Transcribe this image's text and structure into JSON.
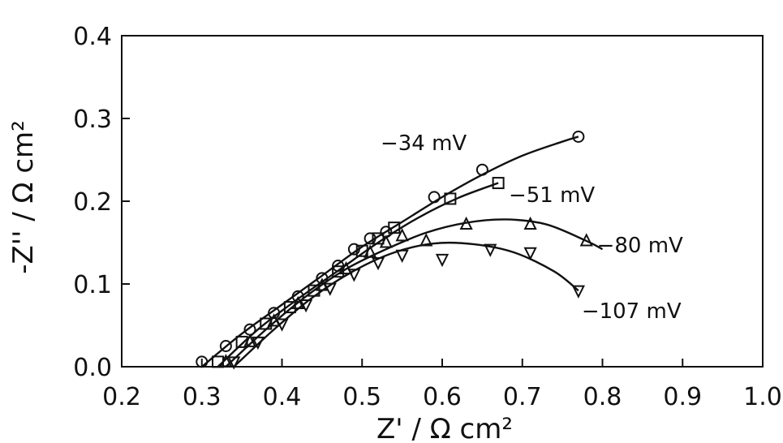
{
  "chart_data": {
    "type": "scatter",
    "title": "",
    "xlabel": "Z' / Ω cm²",
    "ylabel": "-Z'' / Ω cm²",
    "xlim": [
      0.2,
      1.0
    ],
    "ylim": [
      0.0,
      0.4
    ],
    "xticks": [
      "0.2",
      "0.3",
      "0.4",
      "0.5",
      "0.6",
      "0.7",
      "0.8",
      "0.9",
      "1.0"
    ],
    "yticks": [
      "0.0",
      "0.1",
      "0.2",
      "0.3",
      "0.4"
    ],
    "grid": false,
    "legend": "none",
    "series": [
      {
        "name": "-34 mV",
        "marker": "circle",
        "points": [
          [
            0.3,
            0.006
          ],
          [
            0.33,
            0.025
          ],
          [
            0.36,
            0.045
          ],
          [
            0.39,
            0.065
          ],
          [
            0.42,
            0.085
          ],
          [
            0.45,
            0.107
          ],
          [
            0.47,
            0.122
          ],
          [
            0.49,
            0.142
          ],
          [
            0.51,
            0.155
          ],
          [
            0.53,
            0.163
          ],
          [
            0.59,
            0.205
          ],
          [
            0.65,
            0.238
          ],
          [
            0.77,
            0.278
          ]
        ],
        "curve": [
          [
            0.3,
            0.0
          ],
          [
            0.35,
            0.04
          ],
          [
            0.4,
            0.075
          ],
          [
            0.45,
            0.11
          ],
          [
            0.5,
            0.145
          ],
          [
            0.55,
            0.175
          ],
          [
            0.6,
            0.205
          ],
          [
            0.65,
            0.232
          ],
          [
            0.7,
            0.255
          ],
          [
            0.75,
            0.272
          ],
          [
            0.77,
            0.278
          ]
        ]
      },
      {
        "name": "-51 mV",
        "marker": "square",
        "points": [
          [
            0.32,
            0.006
          ],
          [
            0.35,
            0.03
          ],
          [
            0.38,
            0.052
          ],
          [
            0.41,
            0.072
          ],
          [
            0.44,
            0.092
          ],
          [
            0.47,
            0.115
          ],
          [
            0.5,
            0.14
          ],
          [
            0.52,
            0.155
          ],
          [
            0.54,
            0.168
          ],
          [
            0.61,
            0.203
          ],
          [
            0.67,
            0.222
          ]
        ],
        "curve": [
          [
            0.32,
            0.0
          ],
          [
            0.37,
            0.045
          ],
          [
            0.42,
            0.082
          ],
          [
            0.47,
            0.116
          ],
          [
            0.52,
            0.15
          ],
          [
            0.57,
            0.18
          ],
          [
            0.62,
            0.204
          ],
          [
            0.67,
            0.222
          ]
        ]
      },
      {
        "name": "-80 mV",
        "marker": "triangle-up",
        "points": [
          [
            0.33,
            0.006
          ],
          [
            0.36,
            0.03
          ],
          [
            0.39,
            0.055
          ],
          [
            0.42,
            0.076
          ],
          [
            0.45,
            0.098
          ],
          [
            0.48,
            0.118
          ],
          [
            0.51,
            0.138
          ],
          [
            0.53,
            0.15
          ],
          [
            0.55,
            0.158
          ],
          [
            0.58,
            0.152
          ],
          [
            0.63,
            0.172
          ],
          [
            0.71,
            0.172
          ],
          [
            0.78,
            0.152
          ]
        ],
        "curve": [
          [
            0.33,
            0.0
          ],
          [
            0.38,
            0.045
          ],
          [
            0.43,
            0.085
          ],
          [
            0.48,
            0.118
          ],
          [
            0.53,
            0.142
          ],
          [
            0.58,
            0.162
          ],
          [
            0.63,
            0.174
          ],
          [
            0.68,
            0.178
          ],
          [
            0.73,
            0.172
          ],
          [
            0.78,
            0.152
          ],
          [
            0.8,
            0.142
          ]
        ]
      },
      {
        "name": "-107 mV",
        "marker": "triangle-down",
        "points": [
          [
            0.34,
            0.006
          ],
          [
            0.37,
            0.03
          ],
          [
            0.4,
            0.052
          ],
          [
            0.43,
            0.075
          ],
          [
            0.46,
            0.095
          ],
          [
            0.49,
            0.112
          ],
          [
            0.52,
            0.126
          ],
          [
            0.55,
            0.135
          ],
          [
            0.6,
            0.13
          ],
          [
            0.66,
            0.142
          ],
          [
            0.71,
            0.138
          ],
          [
            0.77,
            0.092
          ]
        ],
        "curve": [
          [
            0.34,
            0.0
          ],
          [
            0.39,
            0.045
          ],
          [
            0.44,
            0.085
          ],
          [
            0.49,
            0.116
          ],
          [
            0.54,
            0.138
          ],
          [
            0.59,
            0.149
          ],
          [
            0.64,
            0.148
          ],
          [
            0.69,
            0.138
          ],
          [
            0.74,
            0.115
          ],
          [
            0.77,
            0.092
          ]
        ]
      }
    ],
    "annotations": [
      {
        "text": "−34 mV",
        "x": 0.523,
        "y": 0.262
      },
      {
        "text": "−51 mV",
        "x": 0.683,
        "y": 0.199
      },
      {
        "text": "−80 mV",
        "x": 0.793,
        "y": 0.138
      },
      {
        "text": "−107 mV",
        "x": 0.774,
        "y": 0.059
      }
    ]
  }
}
